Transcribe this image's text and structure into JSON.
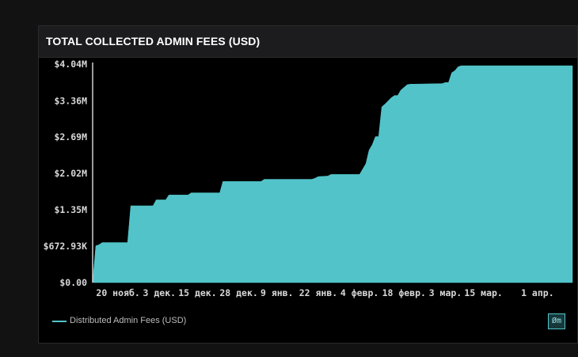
{
  "header": {
    "title": "TOTAL COLLECTED ADMIN FEES (USD)"
  },
  "legend": {
    "label": "Distributed Admin Fees (USD)"
  },
  "logo_button": {
    "label": "Øm"
  },
  "colors": {
    "series": "#52c4c9",
    "background": "#000000",
    "card_header": "#1c1c1e",
    "text": "#ffffff"
  },
  "chart_data": {
    "type": "area",
    "title": "TOTAL COLLECTED ADMIN FEES (USD)",
    "xlabel": "",
    "ylabel": "",
    "ylim": [
      0,
      4040000
    ],
    "y_ticks": [
      0,
      672930,
      1350000,
      2020000,
      2690000,
      3360000,
      4040000
    ],
    "y_tick_labels": [
      "$0.00",
      "$672.93K",
      "$1.35M",
      "$2.02M",
      "$2.69M",
      "$3.36M",
      "$4.04M"
    ],
    "x_range": [
      "2022-11-12",
      "2023-04-12"
    ],
    "x_ticks": [
      "2022-11-20",
      "2022-12-03",
      "2022-12-15",
      "2022-12-28",
      "2023-01-09",
      "2023-01-22",
      "2023-02-04",
      "2023-02-18",
      "2023-03-03",
      "2023-03-15",
      "2023-04-01"
    ],
    "x_tick_labels": [
      "20 нояб.",
      "3 дек.",
      "15 дек.",
      "28 дек.",
      "9 янв.",
      "22 янв.",
      "4 февр.",
      "18 февр.",
      "3 мар.",
      "15 мар.",
      "1 апр."
    ],
    "grid": false,
    "legend_position": "bottom-left",
    "series": [
      {
        "name": "Distributed Admin Fees (USD)",
        "x": [
          "2022-11-12",
          "2022-11-13",
          "2022-11-14",
          "2022-11-15",
          "2022-11-23",
          "2022-11-24",
          "2022-12-01",
          "2022-12-02",
          "2022-12-05",
          "2022-12-06",
          "2022-12-12",
          "2022-12-13",
          "2022-12-22",
          "2022-12-23",
          "2023-01-04",
          "2023-01-05",
          "2023-01-20",
          "2023-01-21",
          "2023-01-22",
          "2023-01-25",
          "2023-01-26",
          "2023-02-04",
          "2023-02-06",
          "2023-02-07",
          "2023-02-08",
          "2023-02-09",
          "2023-02-10",
          "2023-02-11",
          "2023-02-12",
          "2023-02-14",
          "2023-02-15",
          "2023-02-16",
          "2023-02-17",
          "2023-02-19",
          "2023-02-20",
          "2023-02-21",
          "2023-03-02",
          "2023-03-03",
          "2023-03-04",
          "2023-03-05",
          "2023-03-06",
          "2023-03-07",
          "2023-03-08",
          "2023-04-12"
        ],
        "values": [
          0,
          680000,
          700000,
          740000,
          740000,
          1420000,
          1420000,
          1530000,
          1530000,
          1620000,
          1620000,
          1660000,
          1660000,
          1870000,
          1870000,
          1910000,
          1910000,
          1930000,
          1960000,
          1970000,
          2000000,
          2000000,
          2200000,
          2450000,
          2550000,
          2700000,
          2700000,
          3250000,
          3300000,
          3420000,
          3460000,
          3460000,
          3560000,
          3660000,
          3670000,
          3670000,
          3680000,
          3700000,
          3700000,
          3880000,
          3920000,
          3990000,
          4010000,
          4010000
        ]
      }
    ]
  }
}
